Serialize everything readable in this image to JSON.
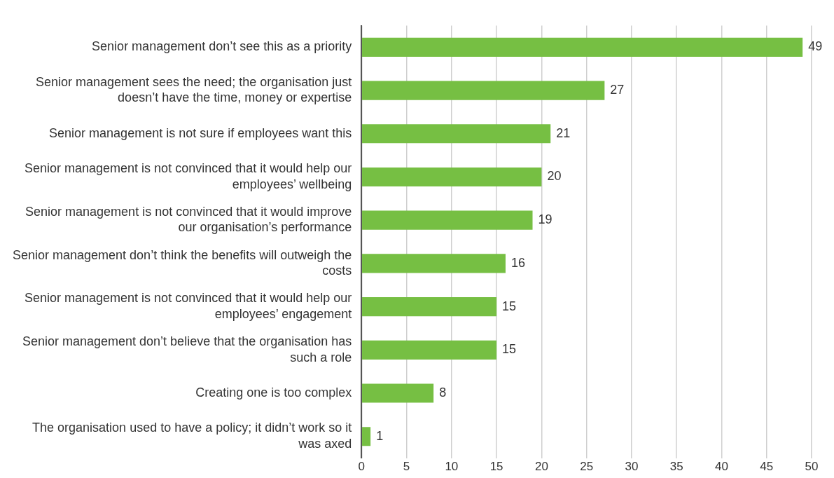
{
  "chart_data": {
    "type": "bar",
    "orientation": "horizontal",
    "categories": [
      "Senior management don’t see this as a priority",
      "Senior management sees the need; the organisation just doesn’t have the time, money or expertise",
      "Senior management is not sure if employees want this",
      "Senior management is not convinced that it would help our employees’ wellbeing",
      "Senior management is not convinced that it would improve our organisation’s performance",
      "Senior management don’t think the benefits will outweigh the costs",
      "Senior management is not convinced that it would help our employees’ engagement",
      "Senior management don’t believe that the organisation has such a role",
      "Creating one is too complex",
      "The organisation used to have a policy; it didn’t work so it was axed"
    ],
    "values": [
      49,
      27,
      21,
      20,
      19,
      16,
      15,
      15,
      8,
      1
    ],
    "color": "#76bf43",
    "xlim": [
      0,
      50
    ],
    "xticks": [
      0,
      5,
      10,
      15,
      20,
      25,
      30,
      35,
      40,
      45,
      50
    ],
    "grid": "x",
    "legend": false,
    "data_labels": true
  }
}
